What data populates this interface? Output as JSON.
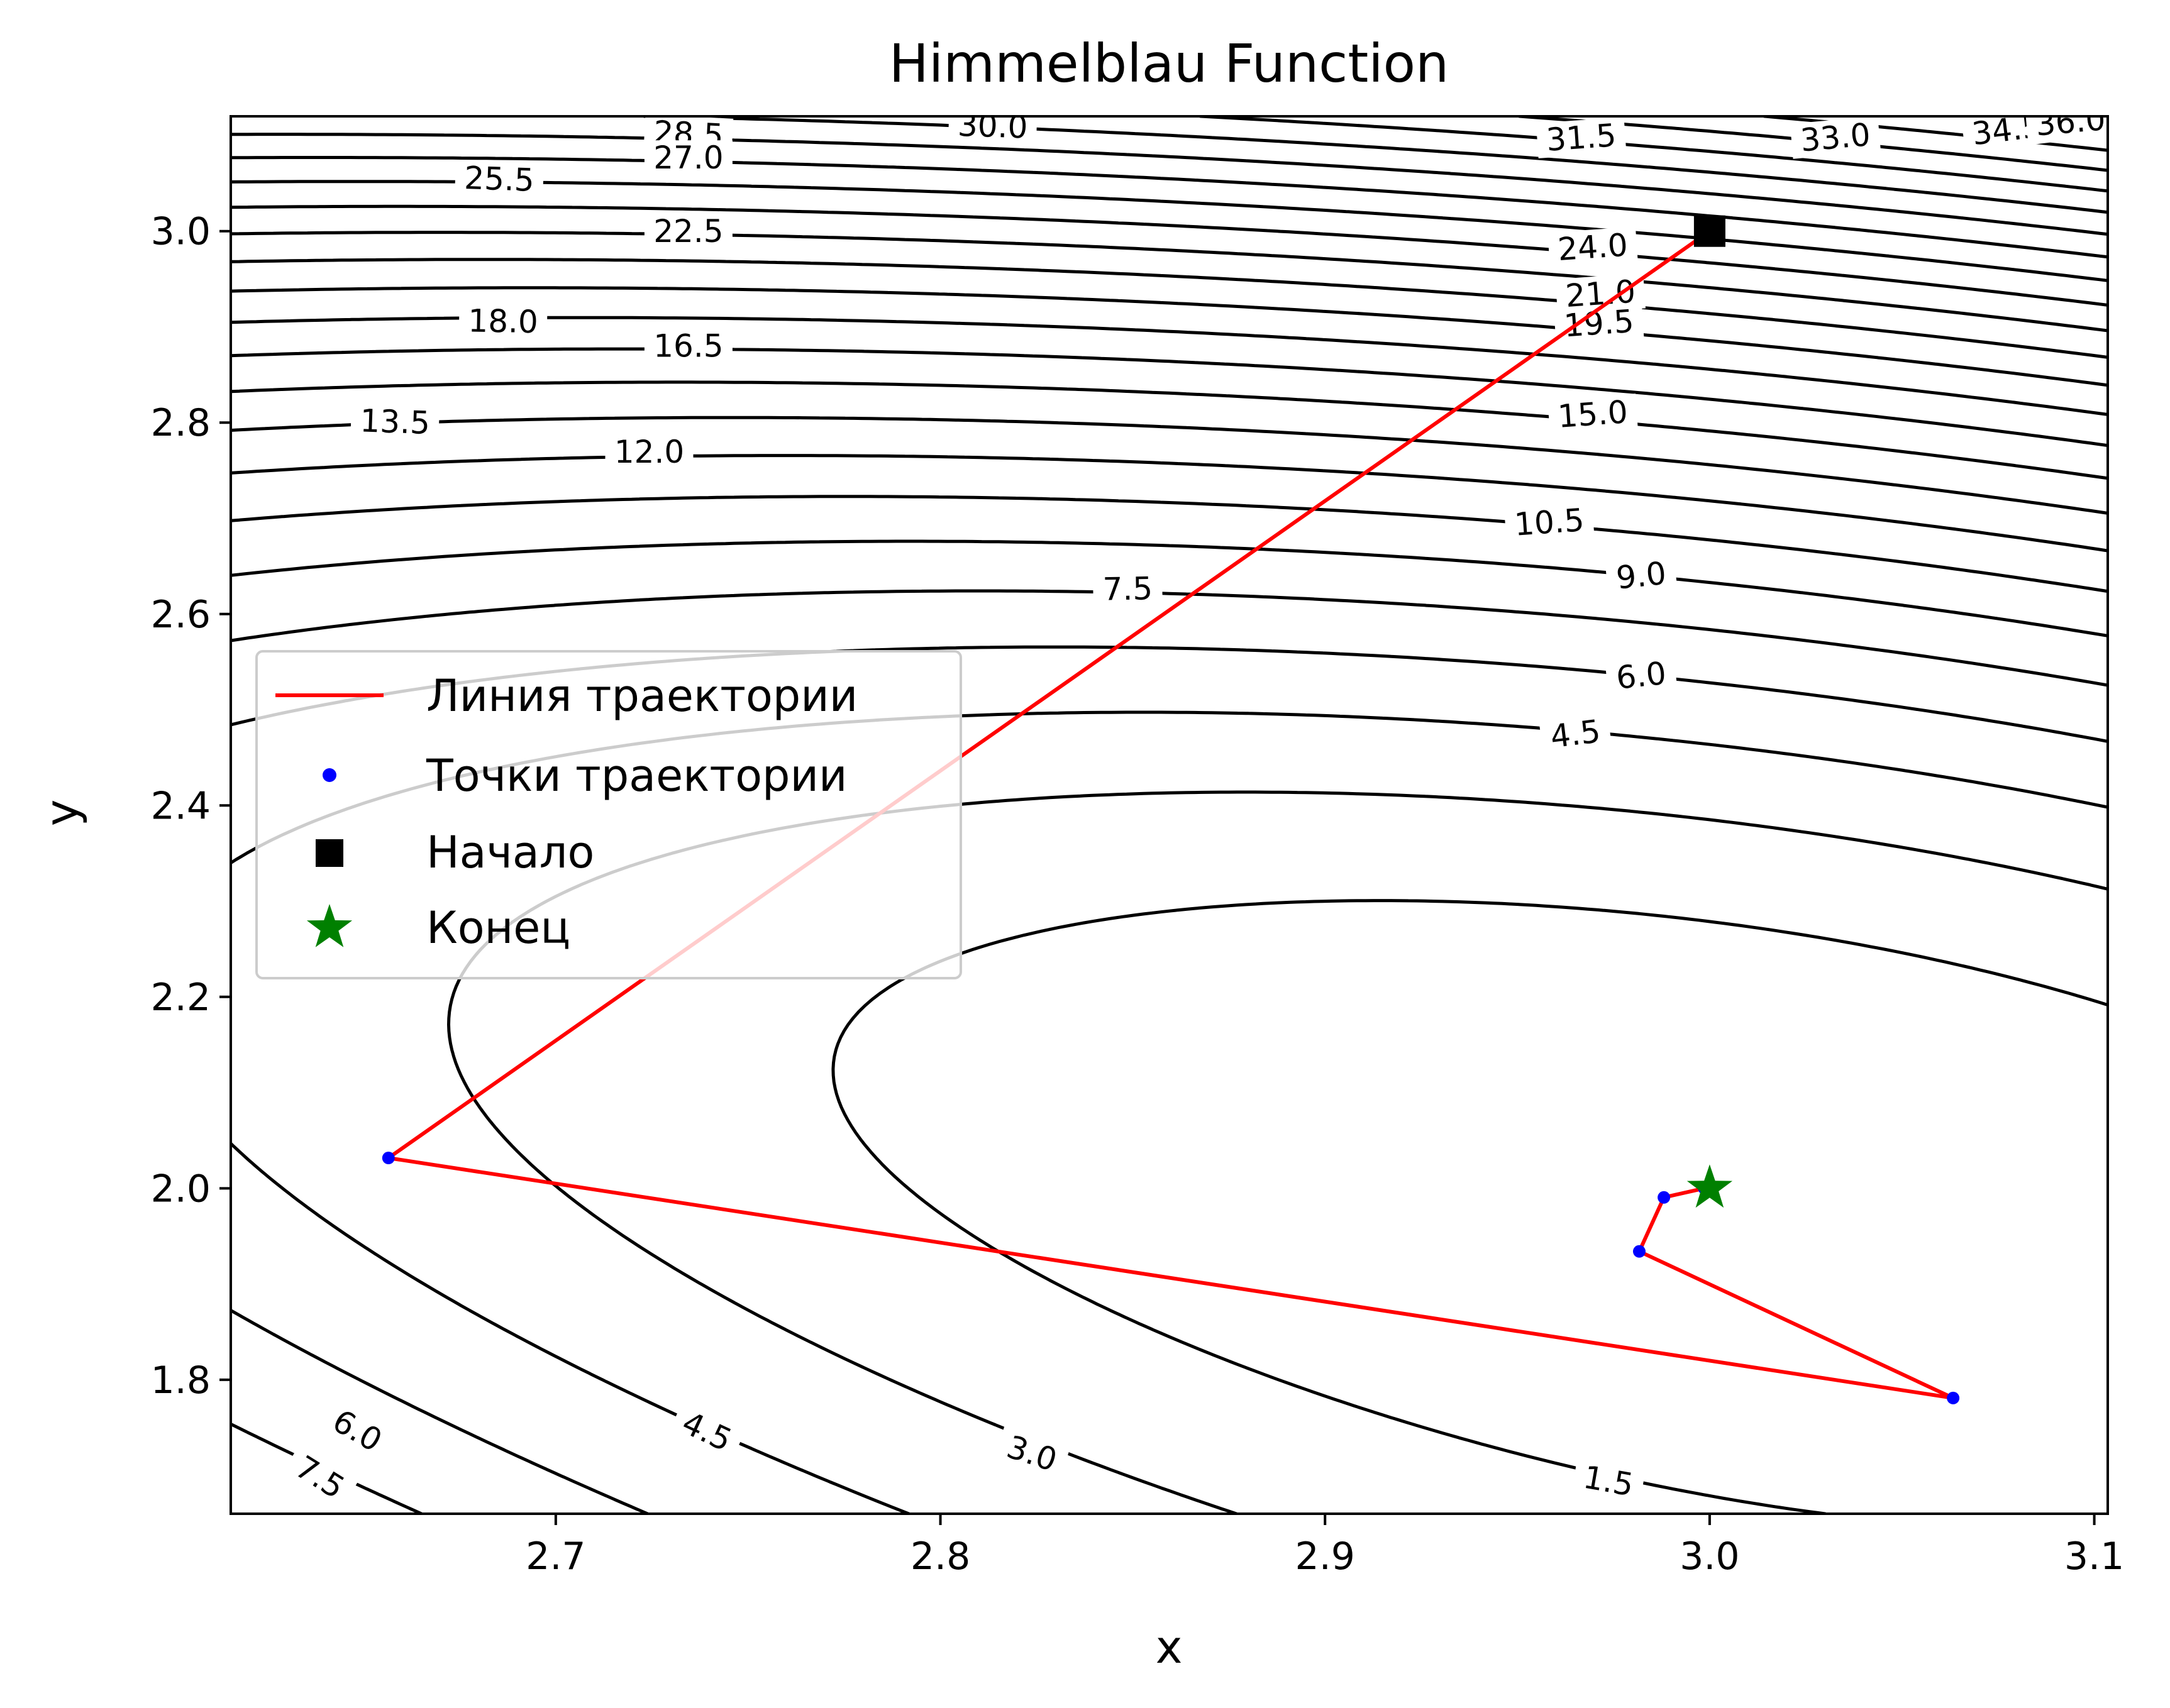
{
  "chart_data": {
    "type": "contour",
    "title": "Himmelblau Function",
    "xlabel": "x",
    "ylabel": "y",
    "xlim": [
      2.6155,
      3.1035
    ],
    "ylim": [
      1.66,
      3.12
    ],
    "x_ticks": [
      2.7,
      2.8,
      2.9,
      3.0,
      3.1
    ],
    "y_ticks": [
      1.8,
      2.0,
      2.2,
      2.4,
      2.6,
      2.8,
      3.0
    ],
    "x_tick_labels": [
      "2.7",
      "2.8",
      "2.9",
      "3.0",
      "3.1"
    ],
    "y_tick_labels": [
      "1.8",
      "2.0",
      "2.2",
      "2.4",
      "2.6",
      "2.8",
      "3.0"
    ],
    "grid": false,
    "contour_levels": {
      "start": 1.5,
      "step": 1.5,
      "end": 36.0
    },
    "contour_labels": [
      {
        "text": "28.5",
        "x": 2.7345,
        "y": 3.1015,
        "angle": 3
      },
      {
        "text": "30.0",
        "x": 2.8136,
        "y": 3.1097,
        "angle": 2
      },
      {
        "text": "31.5",
        "x": 2.9666,
        "y": 3.0977,
        "angle": -4
      },
      {
        "text": "33.0",
        "x": 3.0327,
        "y": 3.0978,
        "angle": -5
      },
      {
        "text": "34.5",
        "x": 3.0773,
        "y": 3.1056,
        "angle": -7
      },
      {
        "text": "36.0",
        "x": 3.0938,
        "y": 3.1142,
        "angle": -5
      },
      {
        "text": "27.0",
        "x": 2.7345,
        "y": 3.0765,
        "angle": 0
      },
      {
        "text": "25.5",
        "x": 2.6853,
        "y": 3.0543,
        "angle": 2
      },
      {
        "text": "22.5",
        "x": 2.7345,
        "y": 2.9997,
        "angle": 0
      },
      {
        "text": "24.0",
        "x": 2.9696,
        "y": 2.9832,
        "angle": -4
      },
      {
        "text": "21.0",
        "x": 2.9716,
        "y": 2.9346,
        "angle": -4
      },
      {
        "text": "19.5",
        "x": 2.9712,
        "y": 2.9035,
        "angle": -4
      },
      {
        "text": "18.0",
        "x": 2.6863,
        "y": 2.9057,
        "angle": 1
      },
      {
        "text": "16.5",
        "x": 2.7345,
        "y": 2.8801,
        "angle": 0
      },
      {
        "text": "15.0",
        "x": 2.9696,
        "y": 2.8087,
        "angle": -4
      },
      {
        "text": "13.5",
        "x": 2.6582,
        "y": 2.8007,
        "angle": 2
      },
      {
        "text": "12.0",
        "x": 2.7243,
        "y": 2.7692,
        "angle": 0
      },
      {
        "text": "10.5",
        "x": 2.9583,
        "y": 2.6958,
        "angle": -4
      },
      {
        "text": "7.5",
        "x": 2.8487,
        "y": 2.6262,
        "angle": -1
      },
      {
        "text": "9.0",
        "x": 2.9822,
        "y": 2.6401,
        "angle": -6
      },
      {
        "text": "6.0",
        "x": 2.9822,
        "y": 2.5356,
        "angle": -6
      },
      {
        "text": "4.5",
        "x": 2.9651,
        "y": 2.4746,
        "angle": -7
      },
      {
        "text": "6.0",
        "x": 2.6484,
        "y": 1.7467,
        "angle": 30
      },
      {
        "text": "4.5",
        "x": 2.7393,
        "y": 1.7459,
        "angle": 25
      },
      {
        "text": "3.0",
        "x": 2.8238,
        "y": 1.7229,
        "angle": 18
      },
      {
        "text": "1.5",
        "x": 2.9737,
        "y": 1.6941,
        "angle": 10
      },
      {
        "text": "7.5",
        "x": 2.6387,
        "y": 1.6981,
        "angle": 32
      }
    ],
    "series": [
      {
        "name": "Линия траектории",
        "type": "line",
        "color": "#ff0000",
        "x": [
          3.0,
          2.6565,
          3.0633,
          2.9817,
          2.9881,
          2.9986,
          3.0
        ],
        "y": [
          3.0,
          2.0317,
          1.7809,
          1.9341,
          1.9905,
          2.0,
          2.0
        ]
      },
      {
        "name": "Точки траектории",
        "type": "scatter",
        "color": "#0000ff",
        "x": [
          2.6565,
          3.0633,
          2.9817,
          2.9881,
          2.9986
        ],
        "y": [
          2.0317,
          1.7809,
          1.9341,
          1.9905,
          2.0
        ]
      },
      {
        "name": "Начало",
        "type": "scatter",
        "marker": "square",
        "color": "#000000",
        "x": [
          3.0
        ],
        "y": [
          3.0
        ]
      },
      {
        "name": "Конец",
        "type": "scatter",
        "marker": "star",
        "color": "#008000",
        "x": [
          3.0
        ],
        "y": [
          2.0
        ]
      }
    ],
    "legend_position": "center-left"
  }
}
